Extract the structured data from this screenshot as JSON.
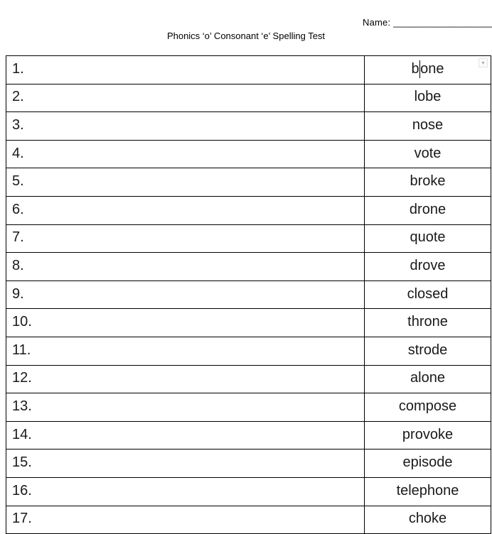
{
  "header": {
    "name_label": "Name:",
    "name_line": "______________________",
    "title": "Phonics ‘o’ Consonant ‘e’ Spelling Test"
  },
  "table": {
    "rows": [
      {
        "number": "1.",
        "word": "bone"
      },
      {
        "number": "2.",
        "word": "lobe"
      },
      {
        "number": "3.",
        "word": "nose"
      },
      {
        "number": "4.",
        "word": "vote"
      },
      {
        "number": "5.",
        "word": "broke"
      },
      {
        "number": "6.",
        "word": "drone"
      },
      {
        "number": "7.",
        "word": "quote"
      },
      {
        "number": "8.",
        "word": "drove"
      },
      {
        "number": "9.",
        "word": "closed"
      },
      {
        "number": "10.",
        "word": "throne"
      },
      {
        "number": "11.",
        "word": "strode"
      },
      {
        "number": "12.",
        "word": "alone"
      },
      {
        "number": "13.",
        "word": "compose"
      },
      {
        "number": "14.",
        "word": "provoke"
      },
      {
        "number": "15.",
        "word": "episode"
      },
      {
        "number": "16.",
        "word": "telephone"
      },
      {
        "number": "17.",
        "word": "choke"
      }
    ],
    "caret": {
      "row_index": 0,
      "char_index": 1
    },
    "dropdown_icon": {
      "row_index": 0,
      "glyph": "▾"
    }
  },
  "colors": {
    "text": "#1a1a1a",
    "border": "#000000",
    "icon_border": "#e2e2e2",
    "icon_glyph": "#a9a9a9"
  }
}
